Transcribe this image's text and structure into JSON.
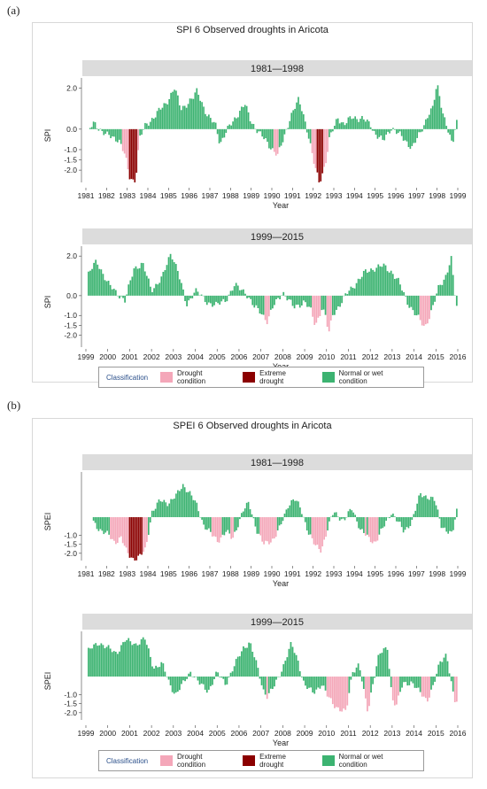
{
  "panel_labels": [
    "(a)",
    "(b)"
  ],
  "legend": {
    "title": "Classification",
    "items": [
      {
        "label": "Drought condition",
        "color": "#f4a7b9"
      },
      {
        "label": "Extreme drought",
        "color": "#8b0000"
      },
      {
        "label": "Normal or wet condition",
        "color": "#3cb371"
      }
    ]
  },
  "chart_data": [
    {
      "type": "bar",
      "title": "SPI 6 Observed droughts in Aricota",
      "ylabel": "SPI",
      "xlabel": "Year",
      "ylim": [
        -2.6,
        2.5
      ],
      "yticks": [
        2.0,
        0.0,
        -1.0,
        -1.5,
        -2.0
      ],
      "ytick_labels": [
        "2.0",
        "0.0",
        "-1.0",
        "-1.5",
        "-2.0"
      ],
      "series_colors": {
        "normal": "#3cb371",
        "drought": "#f4a7b9",
        "extreme": "#8b0000"
      },
      "panels": [
        {
          "strip": "1981—1998",
          "start_year": 1981,
          "xtick_labels": [
            "1981",
            "1982",
            "1983",
            "1984",
            "1985",
            "1986",
            "1987",
            "1988",
            "1989",
            "1990",
            "1991",
            "1992",
            "1993",
            "1994",
            "1995",
            "1996",
            "1997",
            "1998",
            "1999"
          ],
          "keypoints": [
            [
              1981.2,
              0.0
            ],
            [
              1981.4,
              0.3
            ],
            [
              1982.0,
              -0.3
            ],
            [
              1982.6,
              -0.5
            ],
            [
              1982.9,
              -1.3
            ],
            [
              1983.1,
              -2.3
            ],
            [
              1983.4,
              -2.6
            ],
            [
              1983.6,
              -0.5
            ],
            [
              1983.9,
              0.2
            ],
            [
              1984.4,
              0.7
            ],
            [
              1984.9,
              1.3
            ],
            [
              1985.3,
              2.0
            ],
            [
              1985.6,
              1.0
            ],
            [
              1986.2,
              1.5
            ],
            [
              1986.4,
              1.9
            ],
            [
              1986.9,
              0.6
            ],
            [
              1987.3,
              0.2
            ],
            [
              1987.5,
              -0.7
            ],
            [
              1988.0,
              0.2
            ],
            [
              1988.4,
              0.8
            ],
            [
              1988.7,
              1.2
            ],
            [
              1989.0,
              0.4
            ],
            [
              1989.4,
              -0.2
            ],
            [
              1989.9,
              -0.8
            ],
            [
              1990.3,
              -1.3
            ],
            [
              1990.6,
              -0.4
            ],
            [
              1990.9,
              0.6
            ],
            [
              1991.3,
              1.4
            ],
            [
              1991.5,
              0.9
            ],
            [
              1991.8,
              -0.4
            ],
            [
              1992.0,
              -1.5
            ],
            [
              1992.3,
              -2.6
            ],
            [
              1992.6,
              -1.7
            ],
            [
              1992.8,
              -0.5
            ],
            [
              1993.2,
              0.6
            ],
            [
              1993.5,
              0.2
            ],
            [
              1993.9,
              0.6
            ],
            [
              1994.4,
              0.5
            ],
            [
              1994.8,
              0.2
            ],
            [
              1995.0,
              -0.2
            ],
            [
              1995.4,
              -0.6
            ],
            [
              1995.8,
              0.1
            ],
            [
              1996.4,
              -0.5
            ],
            [
              1996.8,
              -0.9
            ],
            [
              1997.2,
              -0.2
            ],
            [
              1997.6,
              0.8
            ],
            [
              1997.8,
              1.0
            ],
            [
              1998.0,
              2.2
            ],
            [
              1998.3,
              0.8
            ],
            [
              1998.6,
              -0.3
            ],
            [
              1998.75,
              -0.9
            ],
            [
              1998.9,
              0.2
            ],
            [
              1999.0,
              0.5
            ]
          ]
        },
        {
          "strip": "1999—2015",
          "start_year": 1999,
          "xtick_labels": [
            "1999",
            "2000",
            "2001",
            "2002",
            "2003",
            "2004",
            "2005",
            "2006",
            "2007",
            "2008",
            "2009",
            "2010",
            "2011",
            "2012",
            "2013",
            "2014",
            "2015",
            "2016"
          ],
          "keypoints": [
            [
              1999.1,
              1.0
            ],
            [
              1999.5,
              1.8
            ],
            [
              2000.0,
              0.6
            ],
            [
              2000.4,
              0.2
            ],
            [
              2000.8,
              -0.3
            ],
            [
              2001.2,
              1.4
            ],
            [
              2001.6,
              1.6
            ],
            [
              2002.0,
              0.3
            ],
            [
              2002.5,
              0.9
            ],
            [
              2002.9,
              2.2
            ],
            [
              2003.2,
              1.3
            ],
            [
              2003.6,
              -0.5
            ],
            [
              2004.0,
              0.3
            ],
            [
              2004.5,
              -0.3
            ],
            [
              2005.0,
              -0.5
            ],
            [
              2005.4,
              -0.2
            ],
            [
              2005.8,
              0.5
            ],
            [
              2006.3,
              0.2
            ],
            [
              2006.7,
              -0.6
            ],
            [
              2007.0,
              -0.8
            ],
            [
              2007.3,
              -1.3
            ],
            [
              2007.6,
              -0.5
            ],
            [
              2008.0,
              0.2
            ],
            [
              2008.5,
              -0.6
            ],
            [
              2009.0,
              -0.3
            ],
            [
              2009.3,
              -0.8
            ],
            [
              2009.5,
              -1.5
            ],
            [
              2009.8,
              -0.6
            ],
            [
              2010.0,
              -1.2
            ],
            [
              2010.1,
              -2.0
            ],
            [
              2010.3,
              -0.9
            ],
            [
              2010.6,
              -0.5
            ],
            [
              2011.0,
              0.2
            ],
            [
              2011.4,
              0.7
            ],
            [
              2011.8,
              1.2
            ],
            [
              2012.2,
              1.4
            ],
            [
              2012.6,
              1.5
            ],
            [
              2013.0,
              1.2
            ],
            [
              2013.3,
              0.7
            ],
            [
              2013.7,
              -0.3
            ],
            [
              2014.1,
              -1.0
            ],
            [
              2014.5,
              -1.6
            ],
            [
              2014.9,
              -0.5
            ],
            [
              2015.1,
              0.3
            ],
            [
              2015.5,
              1.1
            ],
            [
              2015.7,
              2.0
            ],
            [
              2015.85,
              0.2
            ],
            [
              2016.0,
              -0.8
            ]
          ]
        }
      ]
    },
    {
      "type": "bar",
      "title": "SPEI 6 Observed droughts in Aricota",
      "ylabel": "SPEI",
      "xlabel": "Year",
      "ylim": [
        -2.4,
        2.5
      ],
      "yticks": [
        -1.0,
        -1.5,
        -2.0
      ],
      "ytick_labels": [
        "-1.0",
        "-1.5",
        "-2.0"
      ],
      "series_colors": {
        "normal": "#3cb371",
        "drought": "#f4a7b9",
        "extreme": "#8b0000"
      },
      "panels": [
        {
          "strip": "1981—1998",
          "start_year": 1981,
          "xtick_labels": [
            "1981",
            "1982",
            "1983",
            "1984",
            "1985",
            "1986",
            "1987",
            "1988",
            "1989",
            "1990",
            "1991",
            "1992",
            "1993",
            "1994",
            "1995",
            "1996",
            "1997",
            "1998",
            "1999"
          ],
          "keypoints": [
            [
              1981.3,
              -0.2
            ],
            [
              1981.6,
              -0.6
            ],
            [
              1982.1,
              -1.0
            ],
            [
              1982.4,
              -1.4
            ],
            [
              1982.7,
              -1.1
            ],
            [
              1983.0,
              -2.0
            ],
            [
              1983.3,
              -2.3
            ],
            [
              1983.6,
              -2.2
            ],
            [
              1983.9,
              -1.8
            ],
            [
              1984.2,
              0.3
            ],
            [
              1984.6,
              0.9
            ],
            [
              1985.0,
              0.8
            ],
            [
              1985.4,
              1.2
            ],
            [
              1985.7,
              1.8
            ],
            [
              1986.0,
              1.4
            ],
            [
              1986.4,
              0.6
            ],
            [
              1986.7,
              -0.4
            ],
            [
              1987.1,
              -1.0
            ],
            [
              1987.4,
              -1.3
            ],
            [
              1987.8,
              -0.8
            ],
            [
              1988.1,
              -1.2
            ],
            [
              1988.6,
              0.3
            ],
            [
              1988.9,
              0.8
            ],
            [
              1989.3,
              -0.8
            ],
            [
              1989.6,
              -1.5
            ],
            [
              1990.1,
              -1.2
            ],
            [
              1990.4,
              -0.6
            ],
            [
              1990.8,
              0.7
            ],
            [
              1991.1,
              1.0
            ],
            [
              1991.4,
              0.5
            ],
            [
              1991.8,
              -0.9
            ],
            [
              1992.1,
              -1.6
            ],
            [
              1992.4,
              -1.8
            ],
            [
              1992.7,
              -0.7
            ],
            [
              1993.0,
              0.3
            ],
            [
              1993.5,
              -0.2
            ],
            [
              1993.9,
              0.5
            ],
            [
              1994.3,
              -0.7
            ],
            [
              1994.7,
              -1.2
            ],
            [
              1995.0,
              -1.4
            ],
            [
              1995.4,
              -0.6
            ],
            [
              1995.8,
              0.3
            ],
            [
              1996.4,
              -0.8
            ],
            [
              1996.8,
              -0.2
            ],
            [
              1997.2,
              1.3
            ],
            [
              1997.6,
              1.1
            ],
            [
              1997.9,
              0.9
            ],
            [
              1998.2,
              -0.4
            ],
            [
              1998.5,
              -0.8
            ],
            [
              1998.75,
              -1.0
            ],
            [
              1998.9,
              0.1
            ],
            [
              1999.0,
              0.6
            ]
          ]
        },
        {
          "strip": "1999—2015",
          "start_year": 1999,
          "xtick_labels": [
            "1999",
            "2000",
            "2001",
            "2002",
            "2003",
            "2004",
            "2005",
            "2006",
            "2007",
            "2008",
            "2009",
            "2010",
            "2011",
            "2012",
            "2013",
            "2014",
            "2015",
            "2016"
          ],
          "keypoints": [
            [
              1999.1,
              1.4
            ],
            [
              1999.6,
              1.9
            ],
            [
              2000.1,
              1.5
            ],
            [
              2000.4,
              1.3
            ],
            [
              2000.8,
              2.0
            ],
            [
              2001.3,
              1.8
            ],
            [
              2001.7,
              2.1
            ],
            [
              2002.1,
              0.5
            ],
            [
              2002.5,
              0.7
            ],
            [
              2002.8,
              -0.3
            ],
            [
              2003.1,
              -1.0
            ],
            [
              2003.4,
              -0.5
            ],
            [
              2003.8,
              0.3
            ],
            [
              2004.2,
              -0.4
            ],
            [
              2004.6,
              -0.8
            ],
            [
              2005.0,
              0.2
            ],
            [
              2005.4,
              -0.4
            ],
            [
              2005.8,
              0.6
            ],
            [
              2006.2,
              1.6
            ],
            [
              2006.5,
              1.9
            ],
            [
              2006.9,
              0.3
            ],
            [
              2007.1,
              -0.7
            ],
            [
              2007.3,
              -1.1
            ],
            [
              2007.6,
              -0.6
            ],
            [
              2008.0,
              0.5
            ],
            [
              2008.4,
              1.8
            ],
            [
              2008.7,
              0.9
            ],
            [
              2009.0,
              -0.5
            ],
            [
              2009.4,
              -0.9
            ],
            [
              2009.8,
              -0.4
            ],
            [
              2010.0,
              -1.0
            ],
            [
              2010.3,
              -1.5
            ],
            [
              2010.6,
              -1.8
            ],
            [
              2010.9,
              -2.0
            ],
            [
              2011.2,
              0.3
            ],
            [
              2011.5,
              0.7
            ],
            [
              2011.7,
              -0.8
            ],
            [
              2011.9,
              -2.0
            ],
            [
              2012.1,
              -0.5
            ],
            [
              2012.4,
              1.2
            ],
            [
              2012.8,
              1.6
            ],
            [
              2013.0,
              -1.2
            ],
            [
              2013.2,
              -1.6
            ],
            [
              2013.5,
              -0.4
            ],
            [
              2013.9,
              -0.3
            ],
            [
              2014.2,
              -0.8
            ],
            [
              2014.6,
              -1.3
            ],
            [
              2014.9,
              -0.5
            ],
            [
              2015.2,
              0.8
            ],
            [
              2015.5,
              1.3
            ],
            [
              2015.7,
              -0.3
            ],
            [
              2015.85,
              -1.4
            ],
            [
              2016.0,
              -1.4
            ]
          ]
        }
      ]
    }
  ]
}
